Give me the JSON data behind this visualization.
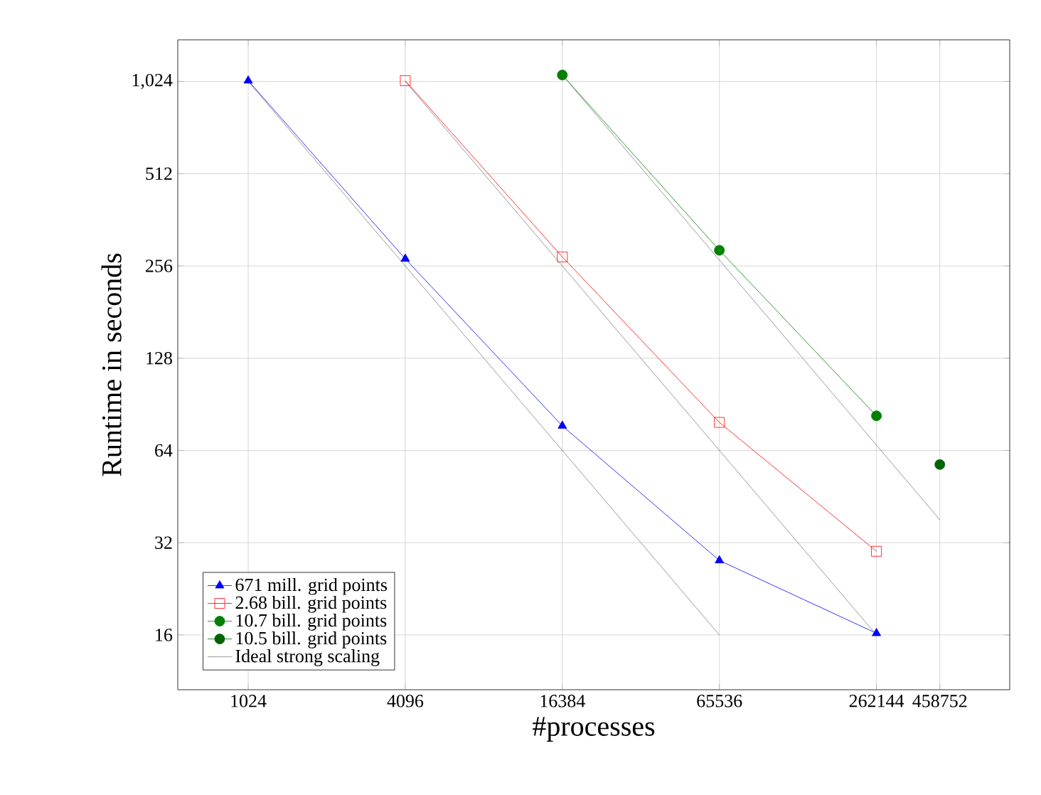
{
  "chart_data": {
    "type": "line",
    "xlabel": "#processes",
    "ylabel": "Runtime in seconds",
    "log": "xy",
    "grid": true,
    "legend": "bottom left",
    "xlim": [
      550,
      850000
    ],
    "ylim": [
      10.6,
      1400
    ],
    "xticks": [
      1024,
      4096,
      16384,
      65536,
      262144,
      458752
    ],
    "yticks": [
      16,
      32,
      64,
      128,
      256,
      512,
      {
        "value": 1024,
        "label": "1,024"
      }
    ],
    "series": [
      {
        "name": "671 mill. grid points",
        "color": "#0000ff",
        "marker": "triangle",
        "x": [
          1024,
          4096,
          16384,
          65536,
          262144
        ],
        "values": [
          1030,
          270,
          77,
          28,
          16.2
        ]
      },
      {
        "name": "2.68 bill. grid points",
        "color": "#ff0000",
        "marker": "square",
        "x": [
          4096,
          16384,
          65536,
          262144
        ],
        "values": [
          1030,
          274,
          79,
          30
        ]
      },
      {
        "name": "10.7 bill. grid points",
        "color": "#008000",
        "marker": "circle",
        "x": [
          16384,
          65536,
          262144
        ],
        "values": [
          1075,
          288,
          83
        ]
      },
      {
        "name": "10.5 bill. grid points",
        "color": "#006400",
        "marker": "circle",
        "x": [
          458752
        ],
        "values": [
          57.6
        ]
      },
      {
        "name": "Ideal strong scaling",
        "color": "#808080",
        "marker": "none",
        "x": [
          1024,
          65536
        ],
        "values": [
          1024,
          16
        ]
      },
      {
        "color": "#808080",
        "marker": "none",
        "x": [
          4096,
          262144
        ],
        "values": [
          1024,
          16
        ]
      },
      {
        "color": "#808080",
        "marker": "none",
        "x": [
          16384,
          458752
        ],
        "values": [
          1075,
          38
        ]
      }
    ]
  }
}
